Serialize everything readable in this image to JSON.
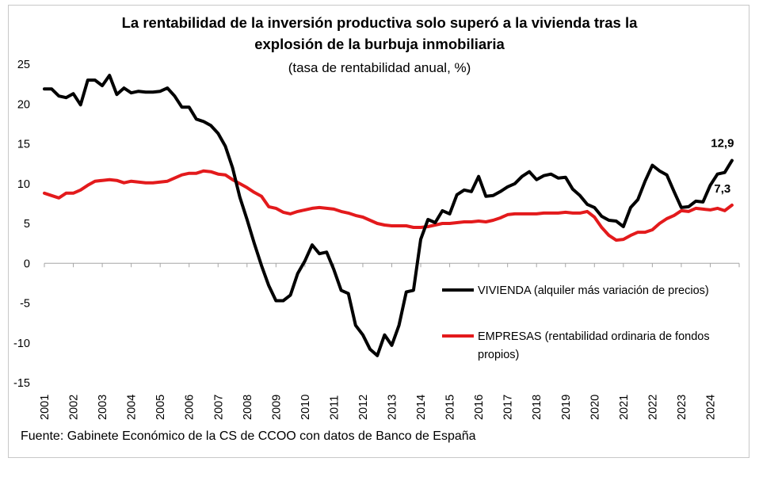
{
  "chart_data": {
    "type": "line",
    "title_line1": "La rentabilidad de la inversión productiva solo superó a la vivienda tras la",
    "title_line2": "explosión de la burbuja inmobiliaria",
    "subtitle": "(tasa de rentabilidad anual, %)",
    "source": "Fuente: Gabinete Económico de la CS de CCOO con datos de Banco de España",
    "ylim": [
      -15,
      25
    ],
    "y_ticks": [
      "25",
      "20",
      "15",
      "10",
      "5",
      "0",
      "-5",
      "-10",
      "-15"
    ],
    "y_tick_values": [
      25,
      20,
      15,
      10,
      5,
      0,
      -5,
      -10,
      -15
    ],
    "x_range": [
      2001,
      2025
    ],
    "categories": [
      "2001",
      "2002",
      "2003",
      "2004",
      "2005",
      "2006",
      "2007",
      "2008",
      "2009",
      "2010",
      "2011",
      "2012",
      "2013",
      "2014",
      "2015",
      "2016",
      "2017",
      "2018",
      "2019",
      "2020",
      "2021",
      "2022",
      "2023",
      "2024"
    ],
    "series": [
      {
        "name": "VIVIENDA",
        "legend": "VIVIENDA (alquiler más variación de precios)",
        "color": "#000000",
        "end_label": "12,9",
        "x": [
          2001.0,
          2001.25,
          2001.5,
          2001.75,
          2002.0,
          2002.25,
          2002.5,
          2002.75,
          2003.0,
          2003.25,
          2003.5,
          2003.75,
          2004.0,
          2004.25,
          2004.5,
          2004.75,
          2005.0,
          2005.25,
          2005.5,
          2005.75,
          2006.0,
          2006.25,
          2006.5,
          2006.75,
          2007.0,
          2007.25,
          2007.5,
          2007.75,
          2008.0,
          2008.25,
          2008.5,
          2008.75,
          2009.0,
          2009.25,
          2009.5,
          2009.75,
          2010.0,
          2010.25,
          2010.5,
          2010.75,
          2011.0,
          2011.25,
          2011.5,
          2011.75,
          2012.0,
          2012.25,
          2012.5,
          2012.75,
          2013.0,
          2013.25,
          2013.5,
          2013.75,
          2014.0,
          2014.25,
          2014.5,
          2014.75,
          2015.0,
          2015.25,
          2015.5,
          2015.75,
          2016.0,
          2016.25,
          2016.5,
          2016.75,
          2017.0,
          2017.25,
          2017.5,
          2017.75,
          2018.0,
          2018.25,
          2018.5,
          2018.75,
          2019.0,
          2019.25,
          2019.5,
          2019.75,
          2020.0,
          2020.25,
          2020.5,
          2020.75,
          2021.0,
          2021.25,
          2021.5,
          2021.75,
          2022.0,
          2022.25,
          2022.5,
          2022.75,
          2023.0,
          2023.25,
          2023.5,
          2023.75,
          2024.0,
          2024.25,
          2024.5,
          2024.75
        ],
        "values": [
          21.9,
          21.9,
          21.0,
          20.8,
          21.3,
          19.9,
          23.0,
          23.0,
          22.3,
          23.6,
          21.2,
          22.0,
          21.4,
          21.6,
          21.5,
          21.5,
          21.6,
          22.0,
          21.0,
          19.6,
          19.6,
          18.1,
          17.8,
          17.3,
          16.3,
          14.7,
          12.0,
          8.3,
          5.5,
          2.5,
          -0.3,
          -2.8,
          -4.7,
          -4.7,
          -4.0,
          -1.3,
          0.3,
          2.3,
          1.2,
          1.4,
          -0.8,
          -3.4,
          -3.8,
          -7.8,
          -9.0,
          -10.8,
          -11.6,
          -9.0,
          -10.3,
          -7.8,
          -3.6,
          -3.4,
          3.0,
          5.5,
          5.1,
          6.6,
          6.2,
          8.6,
          9.2,
          9.0,
          10.9,
          8.4,
          8.5,
          9.0,
          9.6,
          10.0,
          10.9,
          11.5,
          10.5,
          11.0,
          11.2,
          10.7,
          10.8,
          9.3,
          8.5,
          7.4,
          7.0,
          5.9,
          5.4,
          5.3,
          4.6,
          7.0,
          8.0,
          10.3,
          12.3,
          11.6,
          11.1,
          9.0,
          7.0,
          7.1,
          7.8,
          7.7,
          9.8,
          11.2,
          11.4,
          12.9
        ]
      },
      {
        "name": "EMPRESAS",
        "legend": "EMPRESAS (rentabilidad ordinaria de fondos propios)",
        "legend_line1": "EMPRESAS (rentabilidad ordinaria de fondos",
        "legend_line2": "propios)",
        "color": "#e31a1c",
        "end_label": "7,3",
        "x": [
          2001.0,
          2001.25,
          2001.5,
          2001.75,
          2002.0,
          2002.25,
          2002.5,
          2002.75,
          2003.0,
          2003.25,
          2003.5,
          2003.75,
          2004.0,
          2004.25,
          2004.5,
          2004.75,
          2005.0,
          2005.25,
          2005.5,
          2005.75,
          2006.0,
          2006.25,
          2006.5,
          2006.75,
          2007.0,
          2007.25,
          2007.5,
          2007.75,
          2008.0,
          2008.25,
          2008.5,
          2008.75,
          2009.0,
          2009.25,
          2009.5,
          2009.75,
          2010.0,
          2010.25,
          2010.5,
          2010.75,
          2011.0,
          2011.25,
          2011.5,
          2011.75,
          2012.0,
          2012.25,
          2012.5,
          2012.75,
          2013.0,
          2013.25,
          2013.5,
          2013.75,
          2014.0,
          2014.25,
          2014.5,
          2014.75,
          2015.0,
          2015.25,
          2015.5,
          2015.75,
          2016.0,
          2016.25,
          2016.5,
          2016.75,
          2017.0,
          2017.25,
          2017.5,
          2017.75,
          2018.0,
          2018.25,
          2018.5,
          2018.75,
          2019.0,
          2019.25,
          2019.5,
          2019.75,
          2020.0,
          2020.25,
          2020.5,
          2020.75,
          2021.0,
          2021.25,
          2021.5,
          2021.75,
          2022.0,
          2022.25,
          2022.5,
          2022.75,
          2023.0,
          2023.25,
          2023.5,
          2023.75,
          2024.0,
          2024.25,
          2024.5,
          2024.75
        ],
        "values": [
          8.8,
          8.5,
          8.2,
          8.8,
          8.8,
          9.2,
          9.8,
          10.3,
          10.4,
          10.5,
          10.4,
          10.1,
          10.3,
          10.2,
          10.1,
          10.1,
          10.2,
          10.3,
          10.7,
          11.1,
          11.3,
          11.3,
          11.6,
          11.5,
          11.2,
          11.1,
          10.5,
          10.0,
          9.5,
          8.9,
          8.4,
          7.1,
          6.9,
          6.4,
          6.2,
          6.5,
          6.7,
          6.9,
          7.0,
          6.9,
          6.8,
          6.5,
          6.3,
          6.0,
          5.8,
          5.4,
          5.0,
          4.8,
          4.7,
          4.7,
          4.7,
          4.5,
          4.5,
          4.6,
          4.8,
          5.0,
          5.0,
          5.1,
          5.2,
          5.2,
          5.3,
          5.2,
          5.4,
          5.7,
          6.1,
          6.2,
          6.2,
          6.2,
          6.2,
          6.3,
          6.3,
          6.3,
          6.4,
          6.3,
          6.3,
          6.5,
          5.8,
          4.5,
          3.5,
          2.9,
          3.0,
          3.5,
          3.9,
          3.9,
          4.2,
          5.0,
          5.6,
          6.0,
          6.6,
          6.5,
          6.9,
          6.8,
          6.7,
          6.9,
          6.6,
          7.3
        ]
      }
    ]
  }
}
